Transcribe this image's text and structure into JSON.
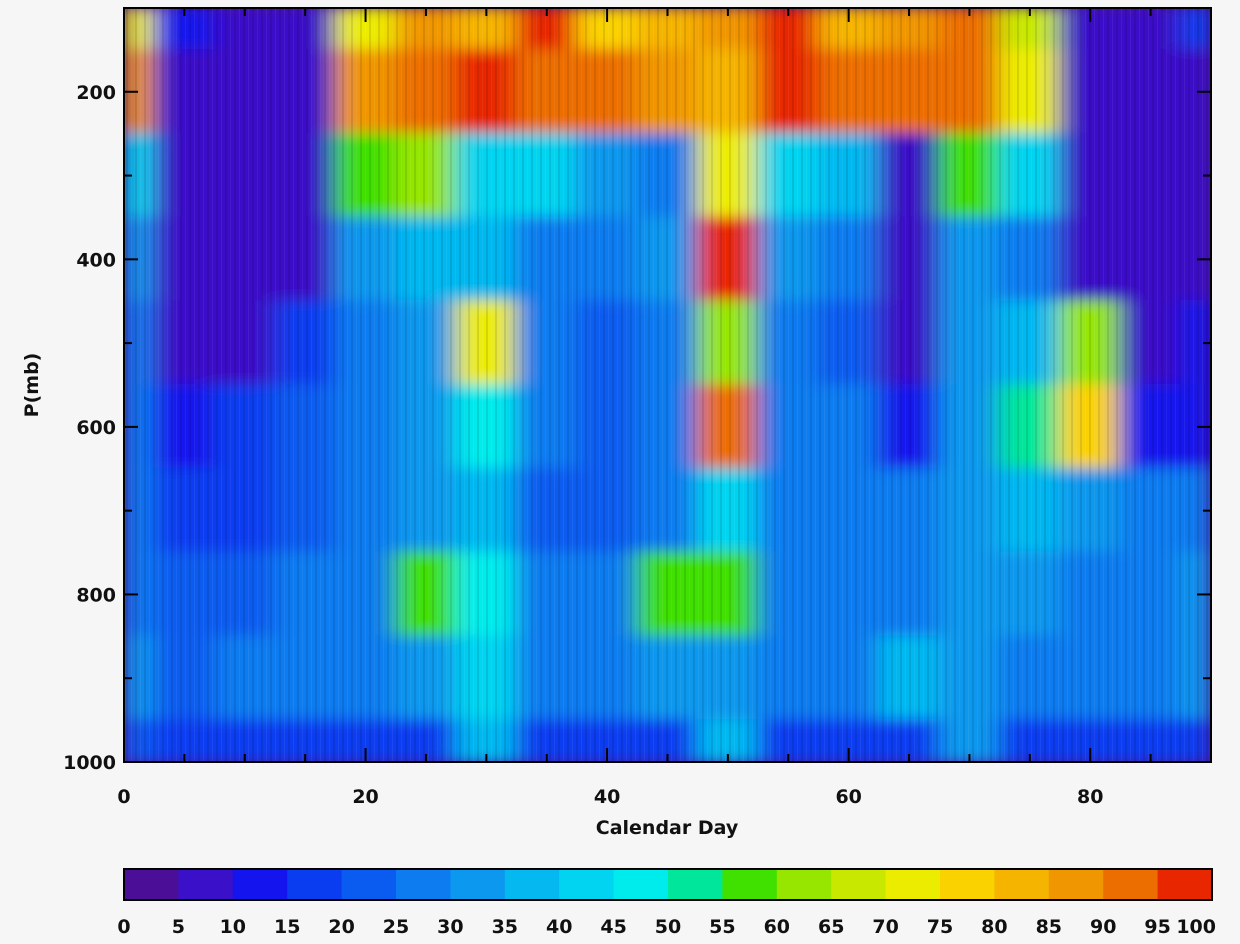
{
  "chart_data": {
    "type": "heatmap",
    "title": "",
    "xlabel": "Calendar Day",
    "ylabel": "P(mb)",
    "xlim": [
      0,
      90
    ],
    "ylim": [
      1000,
      100
    ],
    "x_ticks": [
      0,
      20,
      40,
      60,
      80
    ],
    "y_ticks": [
      200,
      400,
      600,
      800,
      1000
    ],
    "colorbar": {
      "ticks": [
        0,
        5,
        10,
        15,
        20,
        25,
        30,
        35,
        40,
        45,
        50,
        55,
        60,
        65,
        70,
        75,
        80,
        85,
        90,
        95,
        100
      ],
      "colors": [
        "#4a0f96",
        "#3a10c8",
        "#1414ee",
        "#0a3cf0",
        "#0a5cf0",
        "#0c7cf0",
        "#0c98ee",
        "#06b8f0",
        "#00d4f0",
        "#00ecec",
        "#00e69a",
        "#40e000",
        "#96e600",
        "#c8e800",
        "#ecec00",
        "#fad200",
        "#f5b400",
        "#f09600",
        "#ec6e00",
        "#e82600"
      ]
    },
    "pressure_levels": [
      100,
      200,
      300,
      400,
      500,
      600,
      700,
      800,
      900,
      1000
    ],
    "day_bins": [
      0,
      5,
      10,
      15,
      20,
      25,
      30,
      35,
      40,
      45,
      50,
      55,
      60,
      65,
      70,
      75,
      80,
      85,
      90
    ],
    "values": [
      [
        70,
        10,
        5,
        5,
        70,
        85,
        80,
        95,
        75,
        80,
        85,
        95,
        80,
        85,
        90,
        65,
        5,
        5,
        15
      ],
      [
        85,
        5,
        5,
        5,
        85,
        90,
        95,
        90,
        90,
        85,
        80,
        95,
        90,
        90,
        90,
        70,
        5,
        5,
        5
      ],
      [
        40,
        5,
        5,
        5,
        55,
        60,
        40,
        40,
        30,
        25,
        70,
        40,
        35,
        5,
        55,
        40,
        5,
        5,
        5
      ],
      [
        30,
        5,
        5,
        5,
        30,
        35,
        35,
        25,
        25,
        30,
        100,
        30,
        25,
        5,
        30,
        25,
        5,
        5,
        5
      ],
      [
        25,
        5,
        5,
        15,
        25,
        30,
        70,
        25,
        20,
        25,
        60,
        25,
        20,
        5,
        30,
        35,
        60,
        5,
        10
      ],
      [
        25,
        10,
        15,
        20,
        25,
        30,
        45,
        25,
        20,
        25,
        90,
        25,
        25,
        10,
        30,
        50,
        75,
        10,
        10
      ],
      [
        25,
        15,
        15,
        20,
        25,
        30,
        35,
        20,
        20,
        25,
        40,
        25,
        25,
        25,
        30,
        35,
        30,
        25,
        25
      ],
      [
        25,
        20,
        20,
        25,
        25,
        55,
        45,
        25,
        25,
        55,
        55,
        25,
        25,
        25,
        30,
        30,
        25,
        25,
        30
      ],
      [
        30,
        20,
        25,
        25,
        25,
        30,
        40,
        25,
        25,
        30,
        30,
        25,
        25,
        35,
        30,
        25,
        25,
        25,
        30
      ],
      [
        20,
        15,
        15,
        15,
        15,
        15,
        35,
        15,
        15,
        15,
        35,
        15,
        15,
        15,
        30,
        15,
        15,
        15,
        15
      ]
    ]
  }
}
